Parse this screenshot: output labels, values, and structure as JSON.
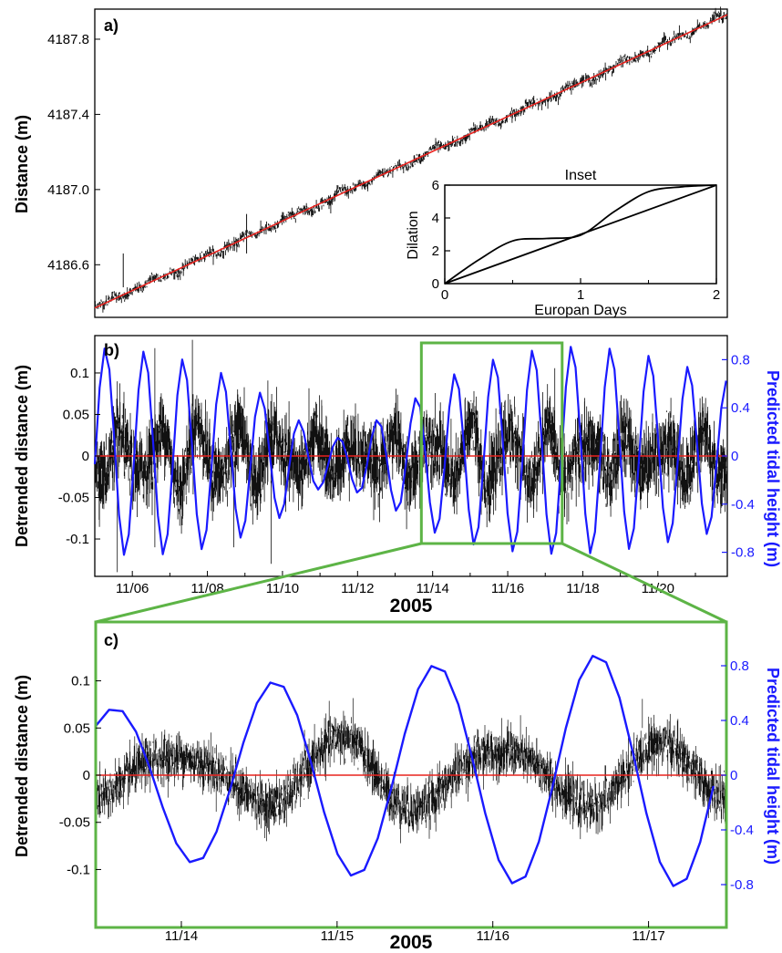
{
  "colors": {
    "data": "#111111",
    "trend": "#e8231f",
    "tide": "#1a1aff",
    "zoom_box": "#5db446",
    "zero_line": "#e8231f"
  },
  "chart_data": [
    {
      "id": "a",
      "type": "scatter",
      "panel_label": "a)",
      "ylabel": "Distance (m)",
      "y_ticks": [
        "4186.6",
        "4187.0",
        "4187.4",
        "4187.8"
      ],
      "ylim": [
        4186.32,
        4187.96
      ],
      "xlim": [
        0,
        1
      ],
      "series": [
        {
          "kind": "measured distance (black dots)",
          "start": 4186.37,
          "end": 4187.93,
          "noise_sd": 0.018
        },
        {
          "kind": "linear trend (red line)",
          "x": [
            0,
            1
          ],
          "y": [
            4186.37,
            4187.93
          ]
        }
      ],
      "spikes": [
        {
          "x": 0.045,
          "y_top": 4186.66,
          "y_bottom": 4186.48
        },
        {
          "x": 0.24,
          "y_top": 4186.87,
          "y_bottom": 4186.66
        }
      ],
      "grid": false,
      "legend": "none",
      "inset": {
        "title": "Inset",
        "xlabel": "Europan Days",
        "ylabel": "Dilation",
        "x_ticks": [
          "0",
          "1",
          "2"
        ],
        "y_ticks": [
          "0",
          "2",
          "4",
          "6"
        ],
        "xlim": [
          0,
          2
        ],
        "ylim": [
          0,
          6
        ],
        "series": [
          {
            "kind": "linear",
            "x": [
              0,
              2
            ],
            "y": [
              0,
              6
            ]
          },
          {
            "kind": "stepped",
            "x": [
              0,
              0.25,
              0.5,
              0.75,
              1.0,
              1.25,
              1.5,
              1.75,
              2.0
            ],
            "y": [
              0,
              1.45,
              2.6,
              2.75,
              2.95,
              4.4,
              5.6,
              5.9,
              6.0
            ]
          }
        ]
      }
    },
    {
      "id": "b",
      "type": "scatter",
      "panel_label": "b)",
      "ylabel": "Detrended distance (m)",
      "y2label": "Predicted tidal height (m)",
      "x_ticks": [
        "11/06",
        "11/08",
        "11/10",
        "11/12",
        "11/14",
        "11/16",
        "11/18",
        "11/20"
      ],
      "x_tick_days": [
        6,
        8,
        10,
        12,
        14,
        16,
        18,
        20
      ],
      "xlabel": "2005",
      "xlim_day": [
        5.0,
        21.85
      ],
      "y_ticks": [
        "-0.1",
        "-0.05",
        "0",
        "0.05",
        "0.1"
      ],
      "ylim": [
        -0.145,
        0.145
      ],
      "y2_ticks": [
        "-0.8",
        "-0.4",
        "0",
        "0.4",
        "0.8"
      ],
      "y2lim": [
        -1.0,
        1.0
      ],
      "tide_model": {
        "period_days": 1.035,
        "phase_day_of_first_peak": 5.28,
        "peak_at_day_16_5": 0.84
      },
      "tide_amplitude_envelope": {
        "day": [
          5,
          6,
          7,
          8,
          9,
          10,
          10.5,
          11,
          11.5,
          12,
          12.5,
          13,
          13.5,
          14,
          15,
          16,
          17,
          18,
          19,
          20,
          21,
          21.85
        ],
        "amplitude": [
          0.86,
          0.86,
          0.83,
          0.76,
          0.64,
          0.46,
          0.33,
          0.22,
          0.2,
          0.26,
          0.34,
          0.42,
          0.5,
          0.62,
          0.74,
          0.82,
          0.86,
          0.87,
          0.84,
          0.78,
          0.7,
          0.62
        ]
      },
      "zero_line": 0,
      "zoom_box_days": [
        13.7,
        17.45
      ],
      "grid": false,
      "legend": "none"
    },
    {
      "id": "c",
      "type": "line",
      "panel_label": "c)",
      "ylabel": "Detrended distance (m)",
      "y2label": "Predicted tidal height (m)",
      "x_ticks": [
        "11/14",
        "11/15",
        "11/16",
        "11/17"
      ],
      "x_tick_days": [
        14,
        15,
        16,
        17
      ],
      "xlabel": "2005",
      "xlim_day": [
        13.45,
        17.5
      ],
      "y_ticks": [
        "-0.1",
        "-0.05",
        "0",
        "0.05",
        "0.1"
      ],
      "ylim": [
        -0.145,
        0.145
      ],
      "y2_ticks": [
        "-0.8",
        "-0.4",
        "0",
        "0.4",
        "0.8"
      ],
      "y2lim": [
        -1.0,
        1.0
      ],
      "tide": {
        "day": [
          13.45,
          13.7,
          13.95,
          14.2,
          14.45,
          14.7,
          14.95,
          15.2,
          15.45,
          15.7,
          15.95,
          16.2,
          16.45,
          16.7,
          16.95,
          17.2,
          17.5
        ],
        "height": [
          0.35,
          -0.05,
          -0.41,
          -0.3,
          0.58,
          0.05,
          -0.58,
          -0.25,
          0.74,
          0.15,
          -0.7,
          -0.3,
          0.82,
          0.25,
          -0.74,
          -0.35,
          0.82
        ]
      },
      "zero_line": 0,
      "grid": false,
      "legend": "none"
    }
  ]
}
